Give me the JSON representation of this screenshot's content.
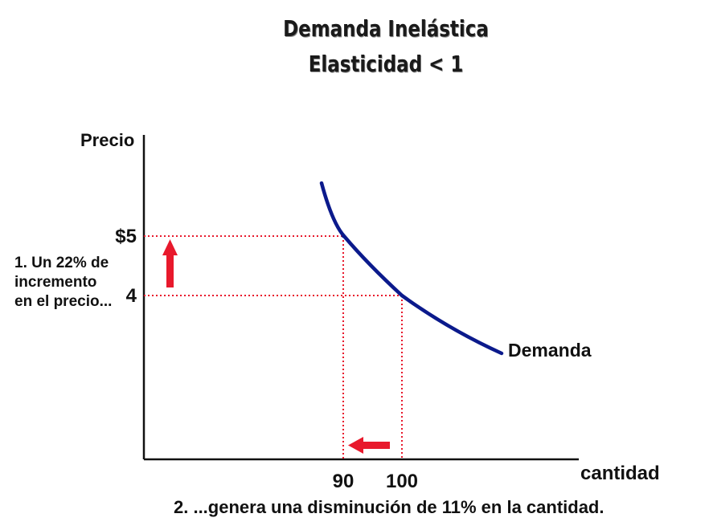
{
  "chart_data": {
    "type": "line",
    "title": [
      "Demanda Inelástica",
      "Elasticidad < 1"
    ],
    "ylabel": "Precio",
    "xlabel": "cantidad",
    "x_tick_labels": [
      "90",
      "100"
    ],
    "y_tick_labels": [
      "$5",
      "4"
    ],
    "series": [
      {
        "name": "Demanda",
        "points": [
          {
            "x": 90,
            "y": 5
          },
          {
            "x": 100,
            "y": 4
          }
        ]
      }
    ],
    "reference_lines": [
      {
        "x": 90,
        "y": 5
      },
      {
        "x": 100,
        "y": 4
      }
    ],
    "annotations": [
      [
        "1. Un 22% de",
        "incremento",
        "en el precio..."
      ],
      "2. ...genera una disminución de 11% en la cantidad."
    ],
    "colors": {
      "curve": "#0b1a8c",
      "guides": "#e8192c",
      "arrows": "#e8192c",
      "axis": "#111111"
    },
    "grid": false
  }
}
